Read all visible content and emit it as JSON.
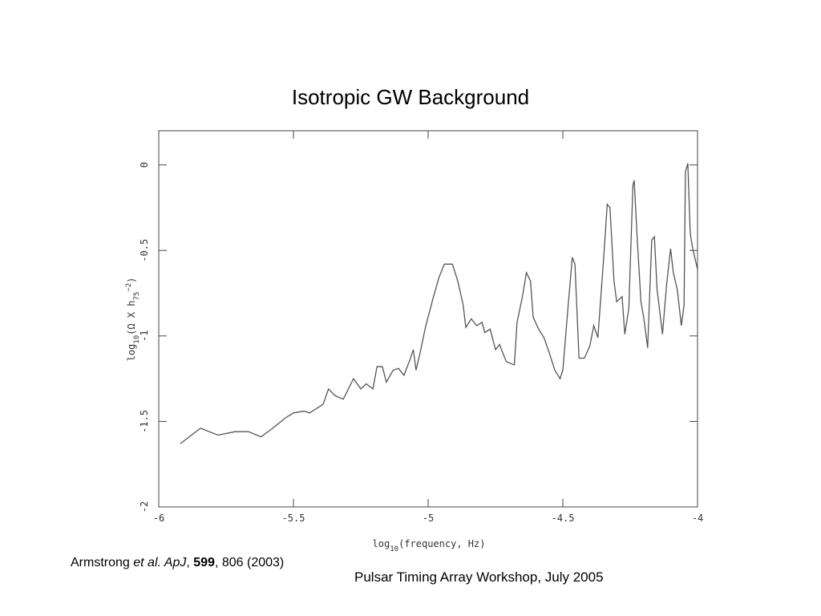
{
  "title": "Isotropic GW Background",
  "citation": [
    {
      "text": "Armstrong ",
      "style": "normal"
    },
    {
      "text": "et al. ApJ",
      "style": "italic"
    },
    {
      "text": ", ",
      "style": "normal"
    },
    {
      "text": "599",
      "style": "bold"
    },
    {
      "text": ", 806 (2003)",
      "style": "normal"
    }
  ],
  "footer": "Pulsar Timing Array Workshop, July 2005",
  "chart_data": {
    "type": "line",
    "x_label": [
      {
        "text": "log",
        "style": "normal"
      },
      {
        "text": "10",
        "style": "sub"
      },
      {
        "text": "(frequency, Hz)",
        "style": "normal"
      }
    ],
    "y_label": [
      {
        "text": "log",
        "style": "normal"
      },
      {
        "text": "10",
        "style": "sub"
      },
      {
        "text": "(Ω X h",
        "style": "normal"
      },
      {
        "text": "75",
        "style": "sub"
      },
      {
        "text": "−2",
        "style": "sup"
      },
      {
        "text": ")",
        "style": "normal"
      }
    ],
    "xlim": [
      -6,
      -4
    ],
    "ylim": [
      -2,
      0.2
    ],
    "xticks": [
      -6,
      -5.5,
      -5,
      -4.5,
      -4
    ],
    "yticks": [
      0,
      -0.5,
      -1,
      -1.5,
      -2
    ],
    "color": "#555555",
    "x": [
      -5.92,
      -5.845,
      -5.78,
      -5.717,
      -5.667,
      -5.62,
      -5.577,
      -5.53,
      -5.5,
      -5.46,
      -5.44,
      -5.39,
      -5.37,
      -5.345,
      -5.315,
      -5.277,
      -5.25,
      -5.23,
      -5.205,
      -5.19,
      -5.17,
      -5.155,
      -5.13,
      -5.11,
      -5.09,
      -5.07,
      -5.055,
      -5.045,
      -5.03,
      -5.01,
      -4.98,
      -4.96,
      -4.94,
      -4.91,
      -4.89,
      -4.87,
      -4.86,
      -4.84,
      -4.82,
      -4.8,
      -4.79,
      -4.77,
      -4.75,
      -4.735,
      -4.71,
      -4.68,
      -4.67,
      -4.65,
      -4.635,
      -4.62,
      -4.61,
      -4.59,
      -4.57,
      -4.55,
      -4.53,
      -4.51,
      -4.5,
      -4.48,
      -4.465,
      -4.455,
      -4.44,
      -4.42,
      -4.4,
      -4.385,
      -4.37,
      -4.35,
      -4.335,
      -4.325,
      -4.31,
      -4.3,
      -4.28,
      -4.27,
      -4.255,
      -4.24,
      -4.235,
      -4.225,
      -4.21,
      -4.2,
      -4.185,
      -4.17,
      -4.16,
      -4.15,
      -4.13,
      -4.115,
      -4.1,
      -4.09,
      -4.075,
      -4.06,
      -4.05,
      -4.045,
      -4.036,
      -4.027,
      -4.018,
      -4.0
    ],
    "values": [
      -1.63,
      -1.54,
      -1.58,
      -1.56,
      -1.56,
      -1.59,
      -1.54,
      -1.48,
      -1.45,
      -1.44,
      -1.45,
      -1.4,
      -1.31,
      -1.35,
      -1.37,
      -1.25,
      -1.31,
      -1.28,
      -1.31,
      -1.18,
      -1.18,
      -1.27,
      -1.2,
      -1.19,
      -1.23,
      -1.15,
      -1.08,
      -1.2,
      -1.1,
      -0.95,
      -0.77,
      -0.66,
      -0.58,
      -0.58,
      -0.68,
      -0.82,
      -0.95,
      -0.9,
      -0.94,
      -0.92,
      -0.98,
      -0.96,
      -1.08,
      -1.05,
      -1.15,
      -1.17,
      -0.92,
      -0.77,
      -0.63,
      -0.68,
      -0.89,
      -0.96,
      -1.01,
      -1.1,
      -1.2,
      -1.25,
      -1.2,
      -0.82,
      -0.54,
      -0.58,
      -1.13,
      -1.13,
      -1.06,
      -0.94,
      -1.01,
      -0.58,
      -0.23,
      -0.25,
      -0.68,
      -0.8,
      -0.77,
      -0.99,
      -0.84,
      -0.12,
      -0.09,
      -0.4,
      -0.8,
      -0.89,
      -1.07,
      -0.44,
      -0.42,
      -0.73,
      -0.99,
      -0.7,
      -0.49,
      -0.63,
      -0.73,
      -0.94,
      -0.82,
      -0.04,
      0.01,
      -0.4,
      -0.49,
      -0.61
    ]
  }
}
